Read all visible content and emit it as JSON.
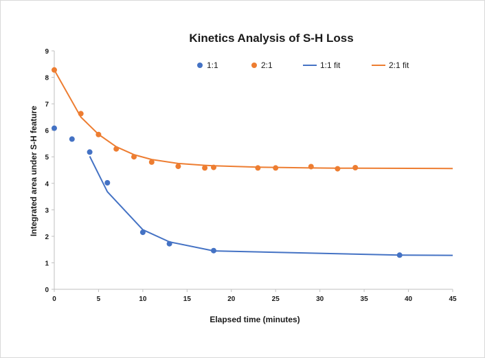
{
  "chart_data": {
    "type": "scatter",
    "title": "Kinetics Analysis of S-H Loss",
    "xlabel": "Elapsed time (minutes)",
    "ylabel": "Integrated area under S-H feature",
    "xlim": [
      0,
      45
    ],
    "ylim": [
      0,
      9
    ],
    "x_ticks": [
      "0",
      "5",
      "10",
      "15",
      "20",
      "25",
      "30",
      "35",
      "40",
      "45"
    ],
    "y_ticks": [
      "0",
      "1",
      "2",
      "3",
      "4",
      "5",
      "6",
      "7",
      "8",
      "9"
    ],
    "grid": false,
    "legend_position": "top",
    "series": [
      {
        "name": "1:1",
        "kind": "scatter",
        "color": "#4472c4",
        "points": [
          [
            0,
            6.08
          ],
          [
            2,
            5.67
          ],
          [
            4,
            5.18
          ],
          [
            6,
            4.02
          ],
          [
            10,
            2.15
          ],
          [
            13,
            1.72
          ],
          [
            18,
            1.46
          ],
          [
            39,
            1.29
          ]
        ]
      },
      {
        "name": "2:1",
        "kind": "scatter",
        "color": "#ed7d31",
        "points": [
          [
            0,
            8.28
          ],
          [
            3,
            6.63
          ],
          [
            5,
            5.84
          ],
          [
            7,
            5.3
          ],
          [
            9,
            5.0
          ],
          [
            11,
            4.8
          ],
          [
            14,
            4.64
          ],
          [
            17,
            4.58
          ],
          [
            18,
            4.6
          ],
          [
            23,
            4.58
          ],
          [
            25,
            4.58
          ],
          [
            29,
            4.63
          ],
          [
            32,
            4.55
          ],
          [
            34,
            4.59
          ]
        ]
      },
      {
        "name": "1:1 fit",
        "kind": "line",
        "color": "#4472c4",
        "points": [
          [
            4,
            5.02
          ],
          [
            6,
            3.68
          ],
          [
            10,
            2.25
          ],
          [
            13,
            1.79
          ],
          [
            18,
            1.45
          ],
          [
            39,
            1.29
          ],
          [
            45,
            1.28
          ]
        ]
      },
      {
        "name": "2:1 fit",
        "kind": "line",
        "color": "#ed7d31",
        "points": [
          [
            0,
            8.28
          ],
          [
            3,
            6.5
          ],
          [
            5,
            5.85
          ],
          [
            7,
            5.38
          ],
          [
            9,
            5.08
          ],
          [
            11,
            4.9
          ],
          [
            14,
            4.75
          ],
          [
            17,
            4.68
          ],
          [
            18,
            4.66
          ],
          [
            23,
            4.61
          ],
          [
            25,
            4.6
          ],
          [
            29,
            4.58
          ],
          [
            32,
            4.57
          ],
          [
            34,
            4.57
          ],
          [
            45,
            4.56
          ]
        ]
      }
    ]
  }
}
